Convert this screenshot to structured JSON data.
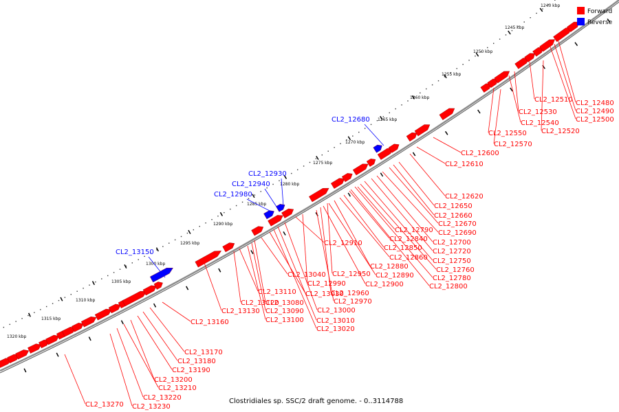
{
  "legend": {
    "forward": {
      "label": "Forward",
      "color": "#ff0000"
    },
    "reverse": {
      "label": "Reverse",
      "color": "#0000ff"
    }
  },
  "caption": "Clostridiales sp. SSC/2 draft genome. - 0..3114788",
  "backbone_color": "#8c8c8c",
  "tick_labels": [
    "1240 kbp",
    "1245 kbp",
    "1250 kbp",
    "1255 kbp",
    "1260 kbp",
    "1265 kbp",
    "1270 kbp",
    "1275 kbp",
    "1280 kbp",
    "1285 kbp",
    "1290 kbp",
    "1295 kbp",
    "1300 kbp",
    "1305 kbp",
    "1310 kbp",
    "1315 kbp",
    "1320 kbp"
  ],
  "forward_labels": [
    "CL2_12480",
    "CL2_12490",
    "CL2_12500",
    "CL2_12510",
    "CL2_12520",
    "CL2_12530",
    "CL2_12540",
    "CL2_12550",
    "CL2_12570",
    "CL2_12600",
    "CL2_12610",
    "CL2_12620",
    "CL2_12650",
    "CL2_12660",
    "CL2_12670",
    "CL2_12690",
    "CL2_12700",
    "CL2_12720",
    "CL2_12750",
    "CL2_12760",
    "CL2_12780",
    "CL2_12800",
    "CL2_12790",
    "CL2_12840",
    "CL2_12850",
    "CL2_12860",
    "CL2_12880",
    "CL2_12890",
    "CL2_12900",
    "CL2_12910",
    "CL2_12950",
    "CL2_12960",
    "CL2_12970",
    "CL2_12990",
    "CL2_13000",
    "CL2_13010",
    "CL2_13020",
    "CL2_13030",
    "CL2_13040",
    "CL2_13080",
    "CL2_13090",
    "CL2_13100",
    "CL2_13110",
    "CL2_13120",
    "CL2_13130",
    "CL2_13160",
    "CL2_13170",
    "CL2_13180",
    "CL2_13190",
    "CL2_13200",
    "CL2_13210",
    "CL2_13220",
    "CL2_13230",
    "CL2_13270"
  ],
  "reverse_labels": [
    "CL2_12680",
    "CL2_12930",
    "CL2_12940",
    "CL2_12980",
    "CL2_13150"
  ]
}
